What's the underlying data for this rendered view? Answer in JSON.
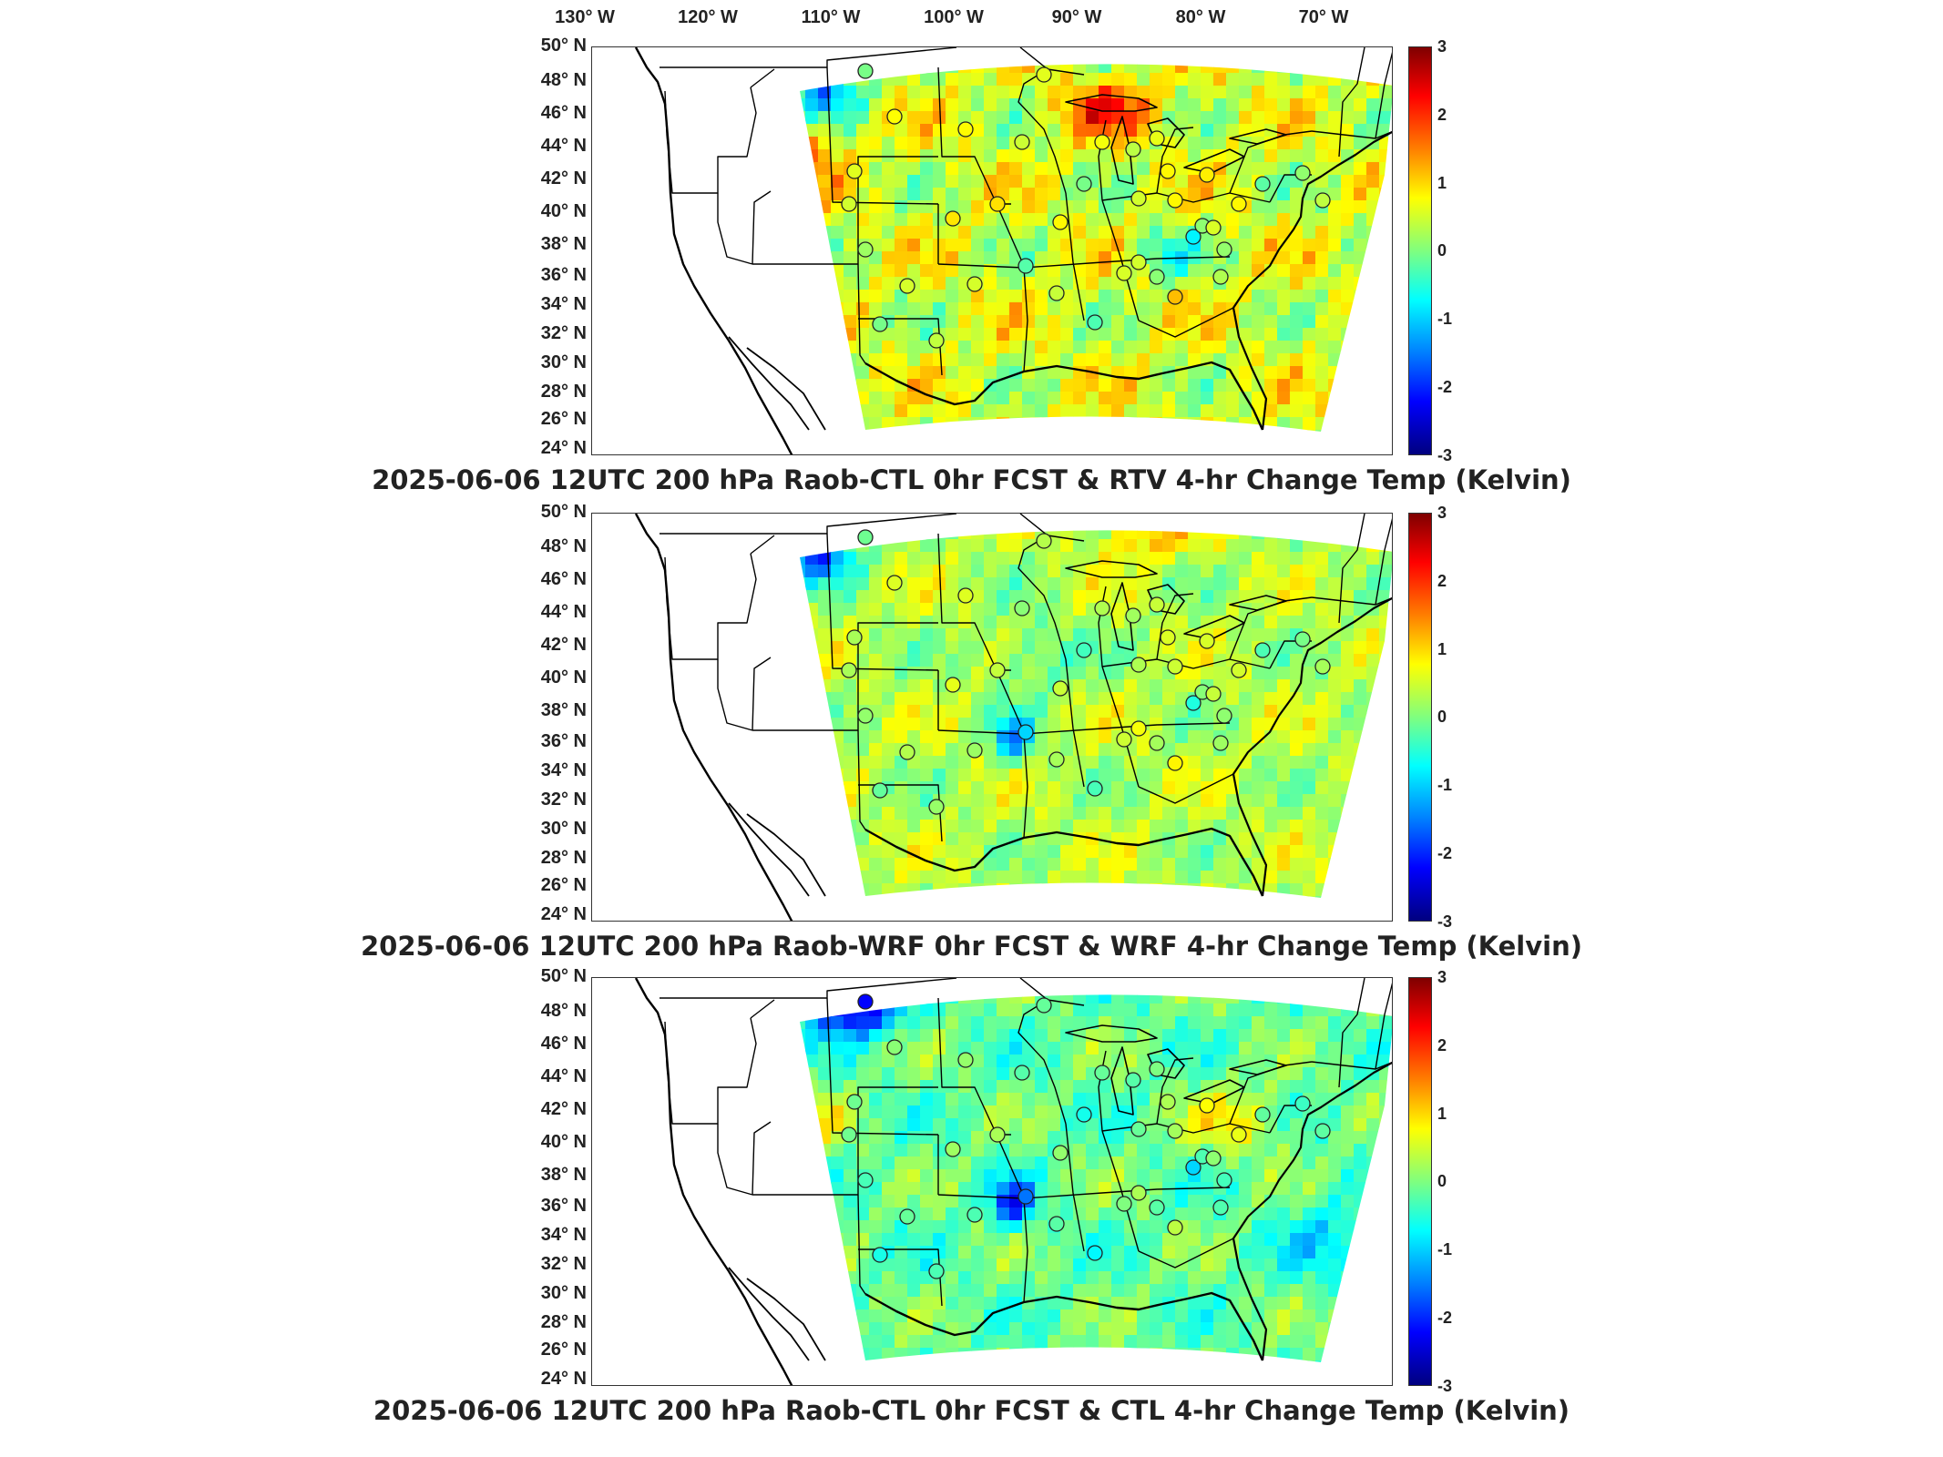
{
  "longitude_labels": [
    "130° W",
    "120° W",
    "110° W",
    "100° W",
    "90° W",
    "80° W",
    "70° W"
  ],
  "latitude_labels": [
    "50° N",
    "48° N",
    "46° N",
    "44° N",
    "42° N",
    "40° N",
    "38° N",
    "36° N",
    "34° N",
    "32° N",
    "30° N",
    "28° N",
    "26° N",
    "24° N"
  ],
  "colorbar_ticks": [
    "3",
    "2",
    "1",
    "0",
    "-1",
    "-2",
    "-3"
  ],
  "panels": [
    {
      "caption": "2025-06-06 12UTC 200 hPa Raob-CTL 0hr FCST & RTV 4-hr Change Temp (Kelvin)",
      "palette": "warm"
    },
    {
      "caption": "2025-06-06 12UTC 200 hPa Raob-WRF 0hr FCST & WRF 4-hr Change Temp (Kelvin)",
      "palette": "mixed"
    },
    {
      "caption": "2025-06-06 12UTC 200 hPa Raob-CTL 0hr FCST & CTL 4-hr Change Temp (Kelvin)",
      "palette": "cool"
    }
  ],
  "colors": {
    "colormap": "jet",
    "range_min": -3,
    "range_max": 3,
    "map_lines": "#000000"
  }
}
